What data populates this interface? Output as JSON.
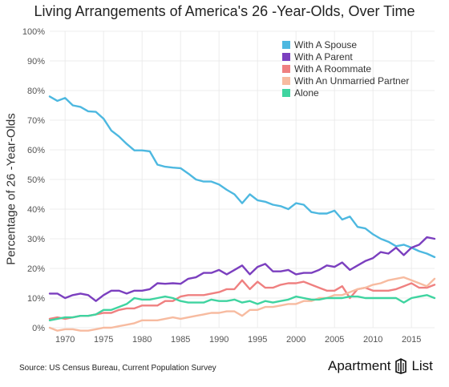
{
  "title": "Living Arrangements of America's 26 -Year-Olds, Over Time",
  "source": "Source: US Census Bureau, Current Population Survey",
  "brand": {
    "part1": "Apartment",
    "part2": "List"
  },
  "chart_data": {
    "type": "line",
    "title": "Living Arrangements of America's 26 -Year-Olds, Over Time",
    "xlabel": "",
    "ylabel": "Percentage of 26 -Year-Olds",
    "xlim": [
      1968,
      2018
    ],
    "ylim": [
      0,
      100
    ],
    "x_ticks": [
      1970,
      1975,
      1980,
      1985,
      1990,
      1995,
      2000,
      2005,
      2010,
      2015
    ],
    "y_ticks": [
      "0%",
      "10%",
      "20%",
      "30%",
      "40%",
      "50%",
      "60%",
      "70%",
      "80%",
      "90%",
      "100%"
    ],
    "grid": true,
    "legend_position": "top-right",
    "x": [
      1968,
      1969,
      1970,
      1971,
      1972,
      1973,
      1974,
      1975,
      1976,
      1977,
      1978,
      1979,
      1980,
      1981,
      1982,
      1983,
      1984,
      1985,
      1986,
      1987,
      1988,
      1989,
      1990,
      1991,
      1992,
      1993,
      1994,
      1995,
      1996,
      1997,
      1998,
      1999,
      2000,
      2001,
      2002,
      2003,
      2004,
      2005,
      2006,
      2007,
      2008,
      2009,
      2010,
      2011,
      2012,
      2013,
      2014,
      2015,
      2016,
      2017,
      2018
    ],
    "series": [
      {
        "name": "With A Spouse",
        "color": "#4db8e0",
        "values": [
          78,
          76.5,
          77.5,
          75,
          74.5,
          73,
          72.8,
          70.5,
          66.5,
          64.5,
          62,
          59.8,
          59.8,
          59.5,
          55,
          54.3,
          54,
          53.8,
          52,
          50,
          49.3,
          49.3,
          48.3,
          46.5,
          45,
          42,
          45,
          43,
          42.5,
          41.5,
          41,
          40,
          42,
          41.5,
          39,
          38.5,
          38.5,
          39.5,
          36.5,
          37.5,
          34,
          33.5,
          31.5,
          30,
          29,
          27.5,
          28,
          27,
          25.8,
          25,
          23.8
        ]
      },
      {
        "name": "With A Parent",
        "color": "#7b3fbf",
        "values": [
          11.5,
          11.5,
          10,
          11,
          11.5,
          11,
          9,
          11,
          12.5,
          12.5,
          11.5,
          12.5,
          12.5,
          13,
          15,
          14.8,
          15,
          14.8,
          16.5,
          17,
          18.5,
          18.5,
          19.5,
          18,
          19.5,
          21,
          18,
          20.5,
          21.5,
          19,
          19,
          19.5,
          18,
          18.5,
          18.5,
          19.5,
          21,
          20.5,
          22,
          19.5,
          21,
          22.5,
          23.5,
          25.5,
          25,
          27,
          24.5,
          27,
          28,
          30.5,
          30
        ]
      },
      {
        "name": "With A Roommate",
        "color": "#ef8080",
        "values": [
          3,
          3.5,
          3,
          3.5,
          4,
          4,
          4.5,
          5,
          5,
          6,
          6.5,
          6.5,
          7.5,
          7.5,
          7.5,
          9,
          9,
          10.5,
          11,
          11,
          11,
          11.5,
          12,
          13,
          13,
          16,
          13,
          15.5,
          13.5,
          13.5,
          14.5,
          15,
          15,
          15.5,
          14.5,
          13.5,
          12.5,
          12.5,
          14,
          10,
          13,
          13.5,
          12.5,
          12.5,
          12.5,
          13,
          14,
          15,
          13.5,
          13.5,
          14.5
        ]
      },
      {
        "name": "With An Unmarried Partner",
        "color": "#f7bba0",
        "values": [
          0,
          -1,
          -0.5,
          -0.5,
          -1,
          -1,
          -0.5,
          0,
          0,
          0.5,
          1,
          1.5,
          2.5,
          2.5,
          2.5,
          3,
          3.5,
          3,
          3.5,
          4,
          4.5,
          5,
          5,
          5.5,
          5.5,
          4,
          6,
          6,
          7,
          7,
          7.5,
          8,
          8,
          9,
          9,
          10,
          10,
          11,
          11,
          12,
          13,
          13.5,
          14.5,
          15,
          16,
          16.5,
          17,
          16,
          15,
          14,
          16.5
        ]
      },
      {
        "name": "Alone",
        "color": "#3fd4a0",
        "values": [
          2.5,
          3,
          3.5,
          3.5,
          4,
          4,
          4.5,
          6,
          6,
          7,
          8,
          10,
          9.5,
          9.5,
          10,
          10.5,
          10,
          9,
          8.5,
          8.5,
          8.5,
          9.5,
          9,
          9,
          9.5,
          8.5,
          9,
          8,
          9,
          8.5,
          9,
          9.5,
          10.5,
          10,
          9.5,
          9.5,
          10,
          10,
          10,
          10.5,
          10.5,
          10,
          10,
          10,
          10,
          10,
          8.5,
          10,
          10.5,
          11,
          10
        ]
      }
    ]
  }
}
